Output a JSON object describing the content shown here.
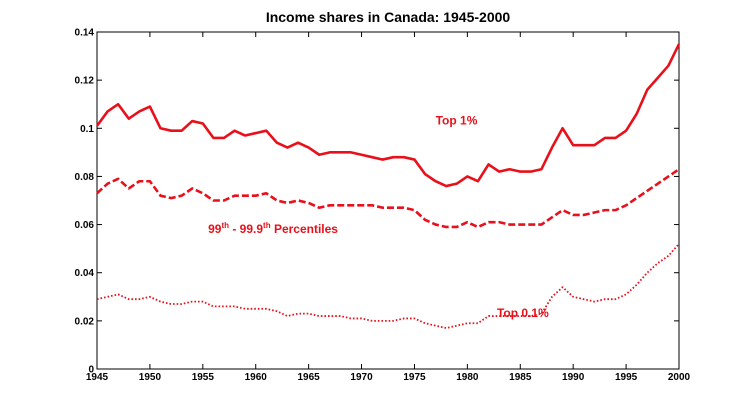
{
  "chart_data": {
    "type": "line",
    "title": "Income shares in Canada: 1945-2000",
    "xlabel": "",
    "ylabel": "",
    "xlim": [
      1945,
      2000
    ],
    "ylim": [
      0,
      0.14
    ],
    "xticks": [
      "1945",
      "1950",
      "1955",
      "1960",
      "1965",
      "1970",
      "1975",
      "1980",
      "1985",
      "1990",
      "1995",
      "2000"
    ],
    "yticks": [
      "0",
      "0.02",
      "0.04",
      "0.06",
      "0.08",
      "0.1",
      "0.12",
      "0.14"
    ],
    "grid": false,
    "x": [
      1945,
      1946,
      1947,
      1948,
      1949,
      1950,
      1951,
      1952,
      1953,
      1954,
      1955,
      1956,
      1957,
      1958,
      1959,
      1960,
      1961,
      1962,
      1963,
      1964,
      1965,
      1966,
      1967,
      1968,
      1969,
      1970,
      1971,
      1972,
      1973,
      1974,
      1975,
      1976,
      1977,
      1978,
      1979,
      1980,
      1981,
      1982,
      1983,
      1984,
      1985,
      1986,
      1987,
      1988,
      1989,
      1990,
      1991,
      1992,
      1993,
      1994,
      1995,
      1996,
      1997,
      1998,
      1999,
      2000
    ],
    "series": [
      {
        "name": "Top 1%",
        "color": "#e8101a",
        "style": "solid",
        "values": [
          0.101,
          0.107,
          0.11,
          0.104,
          0.107,
          0.109,
          0.1,
          0.099,
          0.099,
          0.103,
          0.102,
          0.096,
          0.096,
          0.099,
          0.097,
          0.098,
          0.099,
          0.094,
          0.092,
          0.094,
          0.092,
          0.089,
          0.09,
          0.09,
          0.09,
          0.089,
          0.088,
          0.087,
          0.088,
          0.088,
          0.087,
          0.081,
          0.078,
          0.076,
          0.077,
          0.08,
          0.078,
          0.085,
          0.082,
          0.083,
          0.082,
          0.082,
          0.083,
          0.092,
          0.1,
          0.093,
          0.093,
          0.093,
          0.096,
          0.096,
          0.099,
          0.106,
          0.116,
          0.121,
          0.126,
          0.135
        ]
      },
      {
        "name": "99th - 99.9th Percentiles",
        "color": "#e8101a",
        "style": "dashed",
        "values": [
          0.073,
          0.077,
          0.079,
          0.075,
          0.078,
          0.078,
          0.072,
          0.071,
          0.072,
          0.075,
          0.073,
          0.07,
          0.07,
          0.072,
          0.072,
          0.072,
          0.073,
          0.07,
          0.069,
          0.07,
          0.069,
          0.067,
          0.068,
          0.068,
          0.068,
          0.068,
          0.068,
          0.067,
          0.067,
          0.067,
          0.066,
          0.062,
          0.06,
          0.059,
          0.059,
          0.061,
          0.059,
          0.061,
          0.061,
          0.06,
          0.06,
          0.06,
          0.06,
          0.063,
          0.066,
          0.064,
          0.064,
          0.065,
          0.066,
          0.066,
          0.068,
          0.071,
          0.074,
          0.077,
          0.08,
          0.083
        ]
      },
      {
        "name": "Top 0.1%",
        "color": "#e8101a",
        "style": "dotted",
        "values": [
          0.029,
          0.03,
          0.031,
          0.029,
          0.029,
          0.03,
          0.028,
          0.027,
          0.027,
          0.028,
          0.028,
          0.026,
          0.026,
          0.026,
          0.025,
          0.025,
          0.025,
          0.024,
          0.022,
          0.023,
          0.023,
          0.022,
          0.022,
          0.022,
          0.021,
          0.021,
          0.02,
          0.02,
          0.02,
          0.021,
          0.021,
          0.019,
          0.018,
          0.017,
          0.018,
          0.019,
          0.019,
          0.022,
          0.022,
          0.022,
          0.022,
          0.022,
          0.023,
          0.03,
          0.034,
          0.03,
          0.029,
          0.028,
          0.029,
          0.029,
          0.031,
          0.035,
          0.04,
          0.044,
          0.047,
          0.052
        ]
      }
    ],
    "annotations": {
      "top1": {
        "text": "Top 1%",
        "series": 0,
        "at_x": 1977,
        "at_y": 0.1015
      },
      "mid": {
        "main1": "99",
        "sup1": "th",
        "main2": " - 99.9",
        "sup2": "th",
        "main3": " Percentiles",
        "series": 1,
        "at_x": 1955.5,
        "at_y": 0.0565
      },
      "top01": {
        "text": "Top 0.1%",
        "series": 2,
        "at_x": 1982.8,
        "at_y": 0.0215
      }
    }
  }
}
